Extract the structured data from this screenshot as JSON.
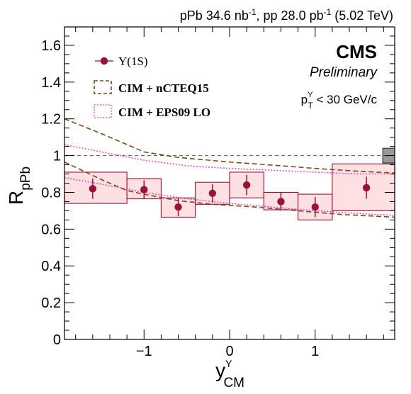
{
  "header": {
    "lumi_text": "pPb 34.6 nb",
    "lumi_sup1": "-1",
    "lumi_mid": ", pp 28.0 pb",
    "lumi_sup2": "-1",
    "lumi_energy": " (5.02 TeV)"
  },
  "labels": {
    "cms": "CMS",
    "preliminary": "Preliminary",
    "pt_p": "p",
    "pt_sup": "Υ",
    "pt_sub": "T",
    "pt_rest": " < 30 GeV/c"
  },
  "chart_data": {
    "type": "scatter",
    "xlabel": {
      "main": "y",
      "sup": "Υ",
      "sub": "CM"
    },
    "ylabel": {
      "main": "R",
      "sub": "pPb"
    },
    "xlim": [
      -1.93,
      1.93
    ],
    "ylim": [
      0,
      1.7
    ],
    "x_ticks": [
      -1,
      0,
      1
    ],
    "x_tick_labels": [
      "−1",
      "0",
      "1"
    ],
    "y_ticks": [
      0,
      0.2,
      0.4,
      0.6,
      0.8,
      1,
      1.2,
      1.4,
      1.6
    ],
    "y_tick_labels": [
      "0",
      "0.2",
      "0.4",
      "0.6",
      "0.8",
      "1",
      "1.2",
      "1.4",
      "1.6"
    ],
    "reference_line": 1.0,
    "global_uncertainty_box": {
      "x_range": [
        1.79,
        1.93
      ],
      "y_range": [
        0.96,
        1.04
      ],
      "color": "#999999"
    },
    "legend": {
      "position": "top-left",
      "entries": [
        {
          "label": "Υ(1S)",
          "style": "marker",
          "color": "#99103a"
        },
        {
          "label": "CIM + nCTEQ15",
          "style": "dashed-box",
          "color": "#7a4a1a"
        },
        {
          "label": "CIM + EPS09 LO",
          "style": "dotted-box",
          "color": "#ff2aa8"
        }
      ]
    },
    "series": [
      {
        "name": "Υ(1S)",
        "color": "#99103a",
        "box_fill": "#fde0e2",
        "points": [
          {
            "x": -1.6,
            "y": 0.82,
            "stat": 0.055,
            "box_x": [
              -1.93,
              -1.2
            ],
            "box_y": [
              0.74,
              0.91
            ]
          },
          {
            "x": -1.0,
            "y": 0.815,
            "stat": 0.05,
            "box_x": [
              -1.2,
              -0.8
            ],
            "box_y": [
              0.765,
              0.875
            ]
          },
          {
            "x": -0.6,
            "y": 0.72,
            "stat": 0.05,
            "box_x": [
              -0.8,
              -0.4
            ],
            "box_y": [
              0.665,
              0.77
            ]
          },
          {
            "x": -0.2,
            "y": 0.795,
            "stat": 0.05,
            "box_x": [
              -0.4,
              0.0
            ],
            "box_y": [
              0.735,
              0.855
            ]
          },
          {
            "x": 0.2,
            "y": 0.84,
            "stat": 0.055,
            "box_x": [
              0.0,
              0.4
            ],
            "box_y": [
              0.77,
              0.91
            ]
          },
          {
            "x": 0.6,
            "y": 0.75,
            "stat": 0.05,
            "box_x": [
              0.4,
              0.8
            ],
            "box_y": [
              0.705,
              0.8
            ]
          },
          {
            "x": 1.0,
            "y": 0.72,
            "stat": 0.055,
            "box_x": [
              0.8,
              1.2
            ],
            "box_y": [
              0.65,
              0.79
            ]
          },
          {
            "x": 1.6,
            "y": 0.825,
            "stat": 0.06,
            "box_x": [
              1.2,
              1.93
            ],
            "box_y": [
              0.7,
              0.955
            ]
          }
        ]
      },
      {
        "name": "CIM + nCTEQ15",
        "color": "#7a4a1a",
        "style": "dashed",
        "upper": [
          [
            -1.93,
            1.2
          ],
          [
            -1.5,
            1.12
          ],
          [
            -1.2,
            1.06
          ],
          [
            -1.0,
            1.02
          ],
          [
            -0.6,
            0.99
          ],
          [
            0,
            0.965
          ],
          [
            0.6,
            0.945
          ],
          [
            1.0,
            0.93
          ],
          [
            1.5,
            0.915
          ],
          [
            1.93,
            0.905
          ]
        ],
        "lower": [
          [
            -1.93,
            0.965
          ],
          [
            -1.5,
            0.87
          ],
          [
            -1.2,
            0.81
          ],
          [
            -1.0,
            0.79
          ],
          [
            -0.6,
            0.755
          ],
          [
            -0.2,
            0.735
          ],
          [
            0.3,
            0.72
          ],
          [
            0.8,
            0.7
          ],
          [
            1.3,
            0.68
          ],
          [
            1.93,
            0.665
          ]
        ]
      },
      {
        "name": "CIM + EPS09 LO",
        "color": "#ff2aa8",
        "style": "dotted",
        "upper": [
          [
            -1.93,
            1.06
          ],
          [
            -1.5,
            1.02
          ],
          [
            -1.0,
            0.975
          ],
          [
            -0.5,
            0.945
          ],
          [
            0,
            0.93
          ],
          [
            0.5,
            0.92
          ],
          [
            1.0,
            0.91
          ],
          [
            1.5,
            0.9
          ],
          [
            1.93,
            0.9
          ]
        ],
        "lower": [
          [
            -1.93,
            0.88
          ],
          [
            -1.5,
            0.845
          ],
          [
            -1.0,
            0.8
          ],
          [
            -0.5,
            0.765
          ],
          [
            0,
            0.74
          ],
          [
            0.5,
            0.72
          ],
          [
            1.0,
            0.7
          ],
          [
            1.5,
            0.685
          ],
          [
            1.93,
            0.675
          ]
        ]
      }
    ]
  }
}
